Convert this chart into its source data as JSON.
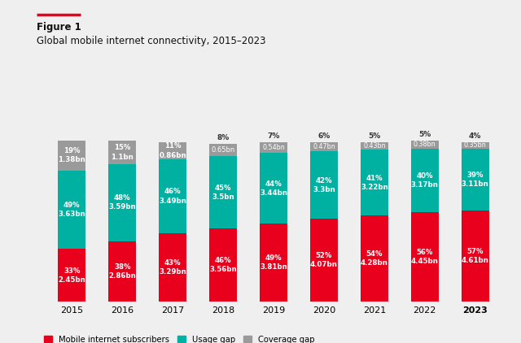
{
  "title_line1": "Figure 1",
  "title_line2": "Global mobile internet connectivity, 2015–2023",
  "years": [
    "2015",
    "2016",
    "2017",
    "2018",
    "2019",
    "2020",
    "2021",
    "2022",
    "2023"
  ],
  "subscribers": {
    "pct": [
      33,
      38,
      43,
      46,
      49,
      52,
      54,
      56,
      57
    ],
    "bn": [
      2.45,
      2.86,
      3.29,
      3.56,
      3.81,
      4.07,
      4.28,
      4.45,
      4.61
    ]
  },
  "usage_gap": {
    "pct": [
      49,
      48,
      46,
      45,
      44,
      42,
      41,
      40,
      39
    ],
    "bn": [
      3.63,
      3.59,
      3.49,
      3.5,
      3.44,
      3.3,
      3.22,
      3.17,
      3.11
    ]
  },
  "coverage_gap": {
    "pct": [
      19,
      15,
      11,
      8,
      7,
      6,
      5,
      5,
      4
    ],
    "bn": [
      1.38,
      1.1,
      0.86,
      0.65,
      0.54,
      0.47,
      0.43,
      0.38,
      0.35
    ]
  },
  "colors": {
    "subscribers": "#E8001C",
    "usage_gap": "#00B0A0",
    "coverage_gap": "#9A9A9A"
  },
  "background_color": "#EFEFEF",
  "bar_width": 0.55,
  "legend_labels": [
    "Mobile internet subscribers",
    "Usage gap",
    "Coverage gap"
  ]
}
